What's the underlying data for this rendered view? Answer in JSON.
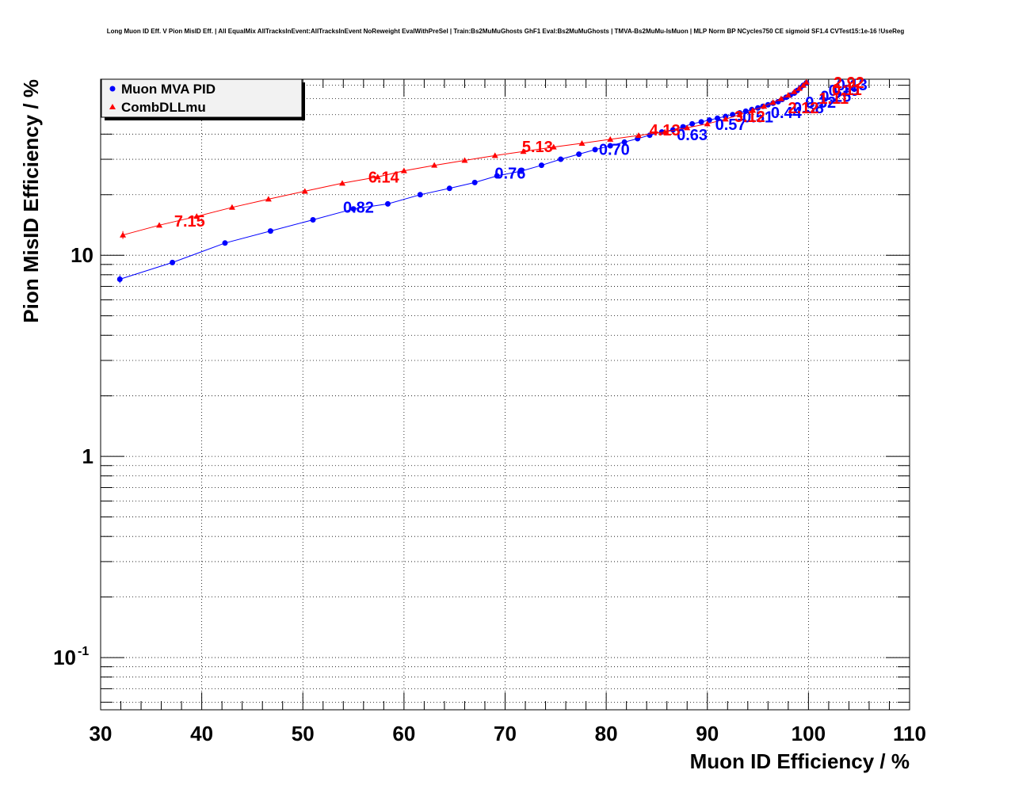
{
  "chart_data": {
    "type": "line",
    "title": "Long Muon ID Eff. V Pion MisID Eff. | All EqualMix AllTracksInEvent:AllTracksInEvent NoReweight EvalWithPreSel | Train:Bs2MuMuGhosts GhF1 Eval:Bs2MuMuGhosts | TMVA-Bs2MuMu-IsMuon | MLP Norm BP NCycles750 CE sigmoid SF1.4 CVTest15:1e-16 !UseReg",
    "xlabel": "Muon ID Efficiency / %",
    "ylabel": "Pion MisID Efficiency / %",
    "xlim": [
      30,
      110
    ],
    "ylim": [
      0.055,
      75
    ],
    "yscale": "log",
    "grid": true,
    "legend_position": "top-left",
    "x_ticks": [
      "30",
      "40",
      "50",
      "60",
      "70",
      "80",
      "90",
      "100",
      "110"
    ],
    "y_ticks": [
      {
        "value": 0.1,
        "label": "10",
        "exp": "-1"
      },
      {
        "value": 1,
        "label": "1",
        "exp": ""
      },
      {
        "value": 10,
        "label": "10",
        "exp": ""
      }
    ],
    "series": [
      {
        "name": "Muon MVA PID",
        "color": "#0000ff",
        "marker": "circle",
        "x": [
          31.9,
          37.1,
          42.3,
          46.8,
          51.0,
          55.0,
          58.4,
          61.6,
          64.5,
          67.0,
          69.2,
          71.6,
          73.6,
          75.5,
          77.3,
          78.9,
          80.4,
          81.8,
          83.1,
          84.3,
          85.5,
          86.6,
          87.6,
          88.5,
          89.4,
          90.2,
          91.0,
          91.8,
          92.5,
          93.2,
          93.8,
          94.4,
          95.0,
          95.5,
          96.0,
          96.5,
          97.0,
          97.4,
          97.8,
          98.2,
          98.6,
          98.9,
          99.2,
          99.5,
          99.8
        ],
        "y": [
          7.6,
          9.2,
          11.5,
          13.2,
          15.0,
          17.0,
          18.0,
          20.0,
          21.5,
          23.0,
          24.8,
          26.2,
          28.0,
          30.0,
          31.8,
          33.5,
          35.0,
          36.5,
          38.0,
          39.5,
          41.0,
          42.0,
          43.5,
          45.0,
          46.0,
          47.0,
          48.0,
          49.0,
          50.0,
          51.0,
          52.0,
          53.0,
          54.0,
          55.0,
          56.0,
          57.0,
          58.0,
          59.5,
          61.0,
          62.5,
          64.0,
          66.0,
          68.0,
          70.0,
          72.0
        ]
      },
      {
        "name": "CombDLLmu",
        "color": "#ff0000",
        "marker": "triangle",
        "x": [
          32.2,
          35.8,
          39.5,
          43.0,
          46.6,
          50.2,
          53.9,
          57.4,
          60.0,
          63.0,
          66.0,
          69.0,
          71.8,
          74.8,
          77.6,
          80.4,
          83.2,
          85.8,
          88.0,
          90.0,
          91.8,
          93.2,
          94.5,
          95.6,
          96.5,
          97.3,
          98.0,
          98.6,
          99.1,
          99.5,
          99.8
        ],
        "y": [
          12.6,
          14.1,
          15.6,
          17.3,
          19.0,
          20.8,
          22.8,
          24.5,
          26.3,
          28.0,
          29.6,
          31.3,
          32.8,
          34.5,
          36.0,
          37.7,
          39.4,
          41.0,
          43.0,
          45.0,
          47.5,
          50.0,
          52.5,
          55.0,
          57.5,
          60.0,
          62.5,
          65.0,
          67.5,
          70.0,
          72.5
        ]
      }
    ],
    "annotations": [
      {
        "series": 0,
        "text": "0.82",
        "x": 55.5,
        "y": 16.3
      },
      {
        "series": 0,
        "text": "0.76",
        "x": 70.5,
        "y": 24.0
      },
      {
        "series": 0,
        "text": "0.70",
        "x": 80.8,
        "y": 31.5
      },
      {
        "series": 0,
        "text": "0.63",
        "x": 88.5,
        "y": 37.3
      },
      {
        "series": 0,
        "text": "0.57",
        "x": 92.3,
        "y": 42.0
      },
      {
        "series": 0,
        "text": "0.51",
        "x": 95.0,
        "y": 45.8
      },
      {
        "series": 0,
        "text": "0.44",
        "x": 97.8,
        "y": 48.2
      },
      {
        "series": 0,
        "text": "0.38",
        "x": 100.0,
        "y": 50.8
      },
      {
        "series": 0,
        "text": "0.32",
        "x": 101.2,
        "y": 54.0
      },
      {
        "series": 0,
        "text": "0.25",
        "x": 102.7,
        "y": 58.0
      },
      {
        "series": 0,
        "text": "0.19",
        "x": 103.5,
        "y": 62.0
      },
      {
        "series": 0,
        "text": "0.13",
        "x": 104.3,
        "y": 66.0
      },
      {
        "series": 1,
        "text": "7.15",
        "x": 38.8,
        "y": 13.9
      },
      {
        "series": 1,
        "text": "6.14",
        "x": 58.0,
        "y": 23.0
      },
      {
        "series": 1,
        "text": "5.13",
        "x": 73.2,
        "y": 32.6
      },
      {
        "series": 1,
        "text": "4.13",
        "x": 85.8,
        "y": 39.4
      },
      {
        "series": 1,
        "text": "3.12",
        "x": 94.2,
        "y": 46.0
      },
      {
        "series": 1,
        "text": "2.12",
        "x": 99.5,
        "y": 50.8
      },
      {
        "series": 1,
        "text": "1.11",
        "x": 102.5,
        "y": 56.5
      },
      {
        "series": 1,
        "text": "0.11",
        "x": 103.8,
        "y": 62.5
      },
      {
        "series": 1,
        "text": "2.92",
        "x": 104.0,
        "y": 68.0
      }
    ]
  }
}
